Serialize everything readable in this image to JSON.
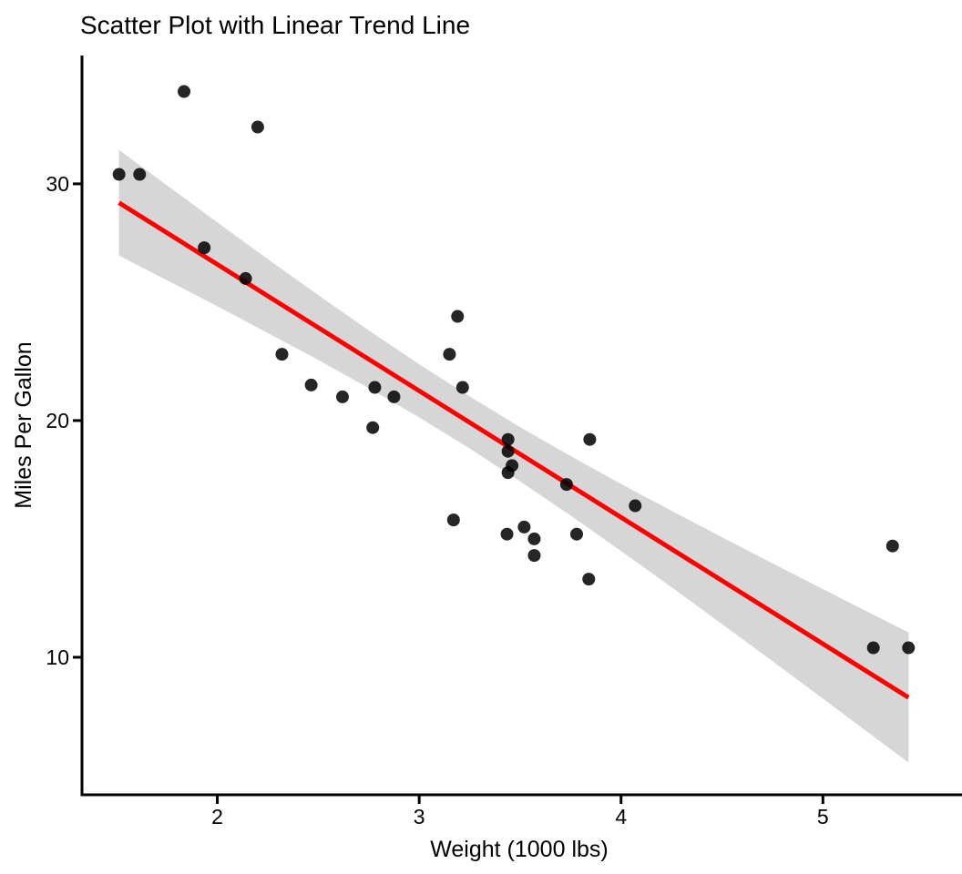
{
  "colors": {
    "point": "#000000",
    "point_opacity": 0.85,
    "trend_line": "#ff0000",
    "ribbon": "#d6d6d6",
    "axis": "#000000",
    "text": "#000000"
  },
  "chart_data": {
    "type": "scatter",
    "title": "Scatter Plot with Linear Trend Line",
    "xlabel": "Weight (1000 lbs)",
    "ylabel": "Miles Per Gallon",
    "xlim": [
      1.325,
      5.671
    ],
    "ylim": [
      4.19,
      35.42
    ],
    "x_ticks": [
      2,
      3,
      4,
      5
    ],
    "y_ticks": [
      10,
      20,
      30
    ],
    "grid": "off",
    "legend": "none",
    "points": [
      [
        2.62,
        21.0
      ],
      [
        2.875,
        21.0
      ],
      [
        2.32,
        22.8
      ],
      [
        3.215,
        21.4
      ],
      [
        3.44,
        18.7
      ],
      [
        3.46,
        18.1
      ],
      [
        3.57,
        14.3
      ],
      [
        3.19,
        24.4
      ],
      [
        3.15,
        22.8
      ],
      [
        3.44,
        19.2
      ],
      [
        3.44,
        17.8
      ],
      [
        4.07,
        16.4
      ],
      [
        3.73,
        17.3
      ],
      [
        3.78,
        15.2
      ],
      [
        5.25,
        10.4
      ],
      [
        5.424,
        10.4
      ],
      [
        5.345,
        14.7
      ],
      [
        2.2,
        32.4
      ],
      [
        1.615,
        30.4
      ],
      [
        1.835,
        33.9
      ],
      [
        2.465,
        21.5
      ],
      [
        3.52,
        15.5
      ],
      [
        3.435,
        15.2
      ],
      [
        3.84,
        13.3
      ],
      [
        3.845,
        19.2
      ],
      [
        1.935,
        27.3
      ],
      [
        2.14,
        26.0
      ],
      [
        1.513,
        30.4
      ],
      [
        3.17,
        15.8
      ],
      [
        2.77,
        19.7
      ],
      [
        3.57,
        15.0
      ],
      [
        2.78,
        21.4
      ]
    ],
    "trend_line": {
      "x1": 1.513,
      "y1": 29.2,
      "x2": 5.424,
      "y2": 8.3
    },
    "confidence_ribbon": {
      "x": [
        1.513,
        1.75,
        2.0,
        2.25,
        2.5,
        2.75,
        3.0,
        3.25,
        3.5,
        3.75,
        4.0,
        4.25,
        4.5,
        4.75,
        5.0,
        5.2,
        5.424
      ],
      "upper": [
        31.43,
        29.94,
        28.37,
        26.82,
        25.3,
        23.81,
        22.38,
        21.02,
        19.72,
        18.5,
        17.32,
        16.19,
        15.07,
        13.97,
        12.88,
        12.01,
        11.05
      ],
      "lower": [
        26.97,
        25.93,
        24.83,
        23.7,
        22.56,
        21.37,
        20.13,
        18.82,
        17.43,
        15.99,
        14.49,
        12.96,
        11.4,
        9.84,
        8.25,
        6.98,
        5.55
      ]
    }
  }
}
